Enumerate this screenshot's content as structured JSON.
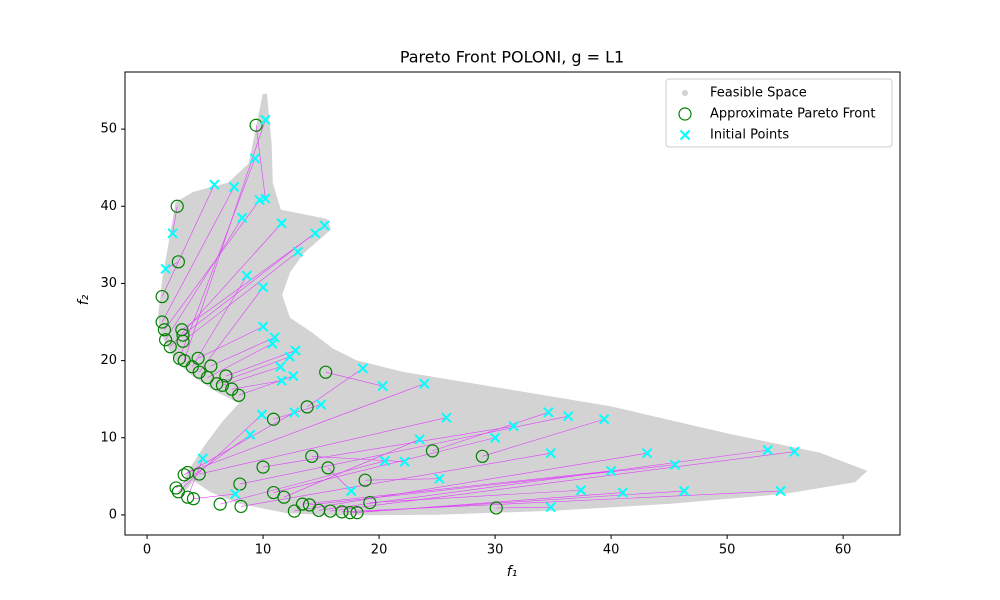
{
  "chart_data": {
    "type": "scatter",
    "title": "Pareto Front POLONI, g = L1",
    "xlabel": "f₁",
    "ylabel": "f₂",
    "xlim": [
      -1.9,
      64.9
    ],
    "ylim": [
      -2.6,
      57.4
    ],
    "xticks": [
      0,
      10,
      20,
      30,
      40,
      50,
      60
    ],
    "yticks": [
      0,
      10,
      20,
      30,
      40,
      50
    ],
    "legend": "upper right",
    "link_color": "#e040fb",
    "series": [
      {
        "name": "Feasible Space",
        "color": "#d3d3d3",
        "marker": "region",
        "x": [
          10.3,
          10.7,
          10.8,
          11.5,
          15.5,
          15.8,
          13.5,
          12.3,
          11.6,
          12.3,
          14,
          16,
          18,
          22,
          30,
          40,
          50,
          58,
          62,
          61,
          55,
          45,
          35,
          25,
          16,
          12,
          8,
          5.5,
          4,
          3.5,
          3,
          3.5,
          5,
          6.5,
          8,
          6,
          4,
          2.5,
          1.2,
          1,
          1.4,
          2,
          2.5,
          4,
          7,
          8.8,
          9.4,
          10
        ],
        "values": [
          54.5,
          48,
          43,
          39.5,
          38.3,
          37,
          34,
          31.5,
          28.5,
          25.5,
          23.8,
          21.5,
          20,
          18.5,
          16.5,
          14,
          10.5,
          8,
          5.7,
          4.3,
          2.8,
          1.5,
          0.6,
          0.1,
          0,
          0.3,
          1.5,
          3,
          4.5,
          3.5,
          3,
          5.5,
          9,
          12,
          14.5,
          16,
          18,
          20,
          23.5,
          26,
          31,
          36,
          40.5,
          41.8,
          43,
          45.5,
          50,
          54.5
        ]
      },
      {
        "name": "Approximate Pareto Front",
        "color": "green",
        "marker": "o",
        "x": [
          1.3,
          1.3,
          1.5,
          1.6,
          2.0,
          2.6,
          2.7,
          3,
          3.1,
          3.1,
          2.8,
          3.2,
          3.9,
          4.5,
          4.4,
          5.2,
          5.5,
          6.0,
          6.5,
          6.8,
          7.3,
          7.9,
          9.4,
          10.9,
          13.8,
          15.4,
          2.5,
          2.7,
          3.2,
          3.5,
          3.5,
          4.0,
          4.5,
          6.3,
          8.1,
          8.0,
          10.0,
          10.9,
          11.8,
          12.7,
          13.4,
          14,
          14.8,
          15.8,
          16.8,
          17.5,
          18.1,
          19.2,
          18.8,
          14.2,
          15.6,
          24.6,
          28.9,
          30.1
        ],
        "values": [
          28.3,
          25,
          24,
          22.7,
          21.8,
          40,
          32.8,
          24,
          23.3,
          22.5,
          20.3,
          20,
          19.2,
          18.5,
          20.3,
          17.8,
          19.3,
          17,
          16.8,
          18,
          16.3,
          15.5,
          50.5,
          12.4,
          14,
          18.5,
          3.5,
          3.0,
          5.2,
          5.5,
          2.3,
          2.1,
          5.3,
          1.4,
          1.1,
          4.0,
          6.2,
          2.9,
          2.3,
          0.5,
          1.4,
          1.3,
          0.6,
          0.5,
          0.4,
          0.3,
          0.3,
          1.6,
          4.5,
          7.6,
          6.1,
          8.3,
          7.6,
          0.9
        ]
      },
      {
        "name": "Initial Points",
        "color": "cyan",
        "marker": "x",
        "x": [
          5.8,
          7.5,
          9.7,
          8.2,
          11.6,
          2.2,
          1.6,
          14.5,
          15.3,
          13.0,
          9.3,
          10.2,
          8.6,
          10,
          10.0,
          10.8,
          11,
          12.3,
          11.5,
          12.8,
          11.6,
          12.6,
          10.2,
          15.0,
          18.6,
          20.3,
          8.9,
          9.9,
          12.7,
          23.9,
          4.8,
          7.6,
          25.8,
          20.5,
          34.8,
          36.3,
          31.6,
          30,
          23.5,
          43.1,
          40,
          45.5,
          53.5,
          55.8,
          54.6,
          46.3,
          41,
          37.4,
          25.2,
          22.2,
          17.6,
          34.6,
          39.4,
          34.8
        ],
        "values": [
          42.8,
          42.5,
          40.8,
          38.5,
          37.8,
          36.5,
          31.9,
          36.5,
          37.5,
          34.1,
          46.2,
          51.2,
          31,
          29.5,
          24.4,
          22.2,
          23,
          20.5,
          19.2,
          21.3,
          17.4,
          18,
          41,
          14.3,
          19,
          16.7,
          10.4,
          13.0,
          13.3,
          17,
          7.3,
          2.7,
          12.6,
          7,
          8,
          12.8,
          11.5,
          10,
          9.8,
          8,
          5.7,
          6.5,
          8.4,
          8.2,
          3.1,
          3.1,
          2.9,
          3.2,
          4.7,
          6.9,
          3.1,
          13.3,
          12.4,
          1
        ]
      }
    ]
  }
}
